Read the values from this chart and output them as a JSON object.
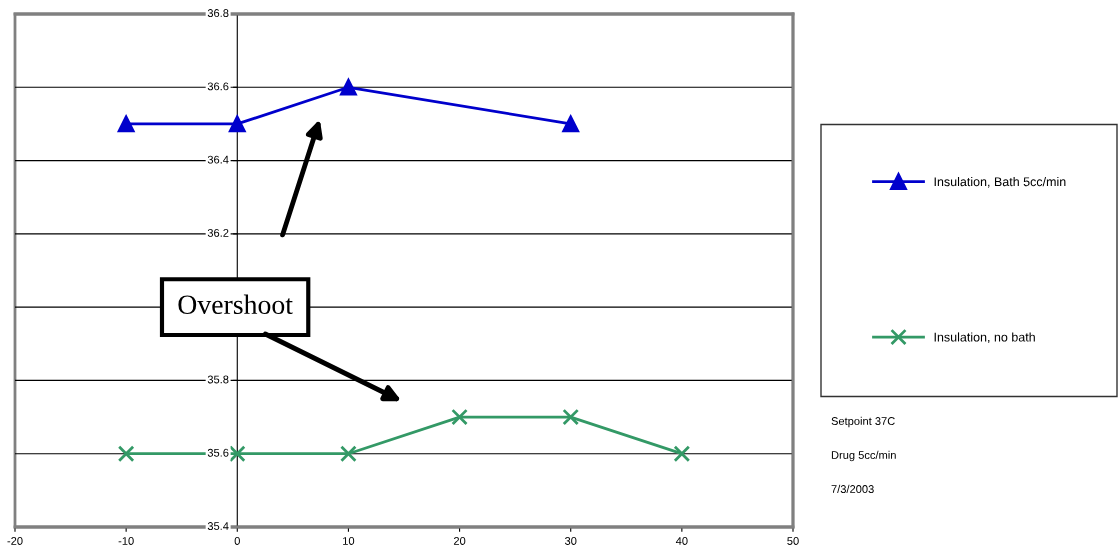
{
  "chart_data": {
    "type": "line",
    "x": [
      -10,
      0,
      10,
      20,
      30,
      40
    ],
    "series": [
      {
        "name": "Insulation, Bath 5cc/min",
        "color": "#0000cc",
        "marker": "triangle",
        "values": [
          36.5,
          36.5,
          36.6,
          null,
          36.5,
          null
        ]
      },
      {
        "name": "Insulation, no bath",
        "color": "#339966",
        "marker": "cross",
        "values": [
          35.6,
          35.6,
          35.6,
          35.7,
          35.7,
          35.6
        ]
      }
    ],
    "xlim": [
      -20,
      50
    ],
    "xticks": [
      -20,
      -10,
      0,
      10,
      20,
      30,
      40,
      50
    ],
    "ylim": [
      35.4,
      36.8
    ],
    "yticks": [
      35.4,
      35.6,
      35.8,
      {
        "value": 36.0,
        "label": null
      },
      36.2,
      36.4,
      36.6,
      36.8
    ],
    "grid": "y",
    "legend": "right",
    "line_style": "solid",
    "annotations": [
      "Overshoot",
      "Setpoint 37C",
      "Drug 5cc/min",
      "7/3/2003"
    ]
  }
}
